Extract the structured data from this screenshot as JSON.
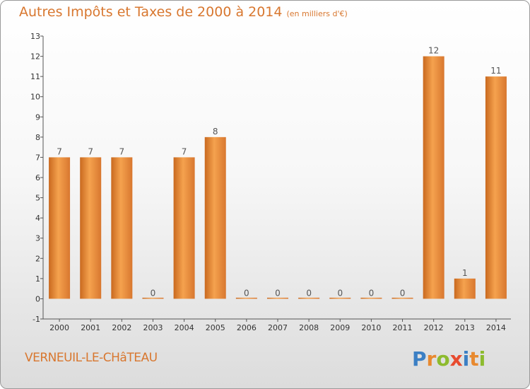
{
  "chart_data": {
    "type": "bar",
    "title": "Autres Impôts et Taxes de 2000 à 2014",
    "subtitle": "(en milliers d'€)",
    "categories": [
      "2000",
      "2001",
      "2002",
      "2003",
      "2004",
      "2005",
      "2006",
      "2007",
      "2008",
      "2009",
      "2010",
      "2011",
      "2012",
      "2013",
      "2014"
    ],
    "values": [
      7,
      7,
      7,
      0,
      7,
      8,
      0,
      0,
      0,
      0,
      0,
      0,
      12,
      1,
      11
    ],
    "xlabel": "",
    "ylabel": "",
    "ylim": [
      -1,
      13
    ],
    "yticks": [
      -1,
      0,
      1,
      2,
      3,
      4,
      5,
      6,
      7,
      8,
      9,
      10,
      11,
      12,
      13
    ],
    "grid": false,
    "bar_color": "#e8892f"
  },
  "commune": "VERNEUIL-LE-CHâTEAU",
  "logo": {
    "letters": [
      "P",
      "r",
      "o",
      "x",
      "i",
      "t",
      "i"
    ],
    "colors": [
      "#3b7fc4",
      "#e8892f",
      "#8dbb2e",
      "#e84b2f",
      "#3b7fc4",
      "#e8892f",
      "#8dbb2e"
    ]
  }
}
